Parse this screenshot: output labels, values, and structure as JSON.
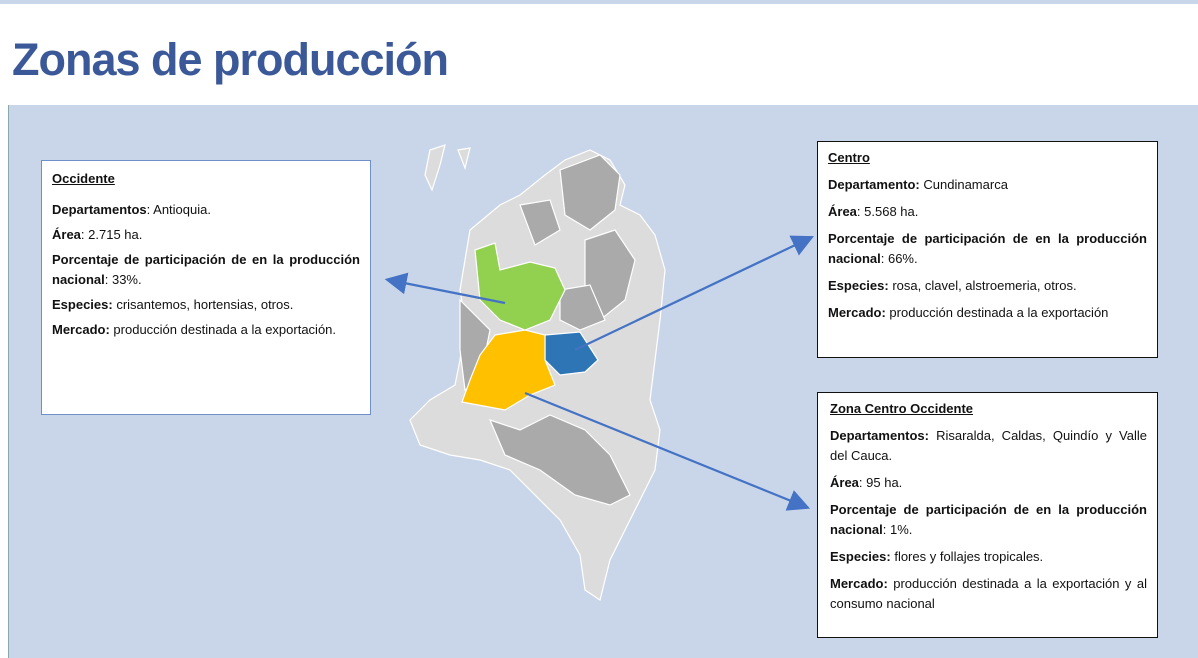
{
  "title": "Zonas de producción",
  "boxes": [
    {
      "heading": "Occidente",
      "items": [
        {
          "label": "Departamentos",
          "value": ": Antioquia."
        },
        {
          "label": "Área",
          "value": ": 2.715 ha."
        },
        {
          "label": "Porcentaje de participación de en la producción nacional",
          "value": ": 33%."
        },
        {
          "label": "Especies:",
          "value": "crisantemos, hortensias, otros."
        },
        {
          "label": "Mercado:",
          "value": "producción destinada a la exportación."
        }
      ]
    },
    {
      "heading": "Centro",
      "items": [
        {
          "label": "Departamento:",
          "value": "Cundinamarca"
        },
        {
          "label": "Área",
          "value": ": 5.568 ha."
        },
        {
          "label": "Porcentaje de participación de en la producción nacional",
          "value": ": 66%."
        },
        {
          "label": "Especies:",
          "value": "rosa, clavel, alstroemeria, otros."
        },
        {
          "label": "Mercado:",
          "value": "producción destinada a la exportación"
        }
      ]
    },
    {
      "heading": "Zona Centro Occidente",
      "items": [
        {
          "label": "Departamentos:",
          "value": "Risaralda, Caldas, Quindío  y Valle del Cauca."
        },
        {
          "label": "Área",
          "value": ": 95 ha."
        },
        {
          "label": "Porcentaje de participación de en la producción nacional",
          "value": ": 1%."
        },
        {
          "label": "Especies:",
          "value": "flores y follajes tropicales."
        },
        {
          "label": "Mercado:",
          "value": "producción destinada a la exportación y al consumo nacional"
        }
      ]
    }
  ]
}
